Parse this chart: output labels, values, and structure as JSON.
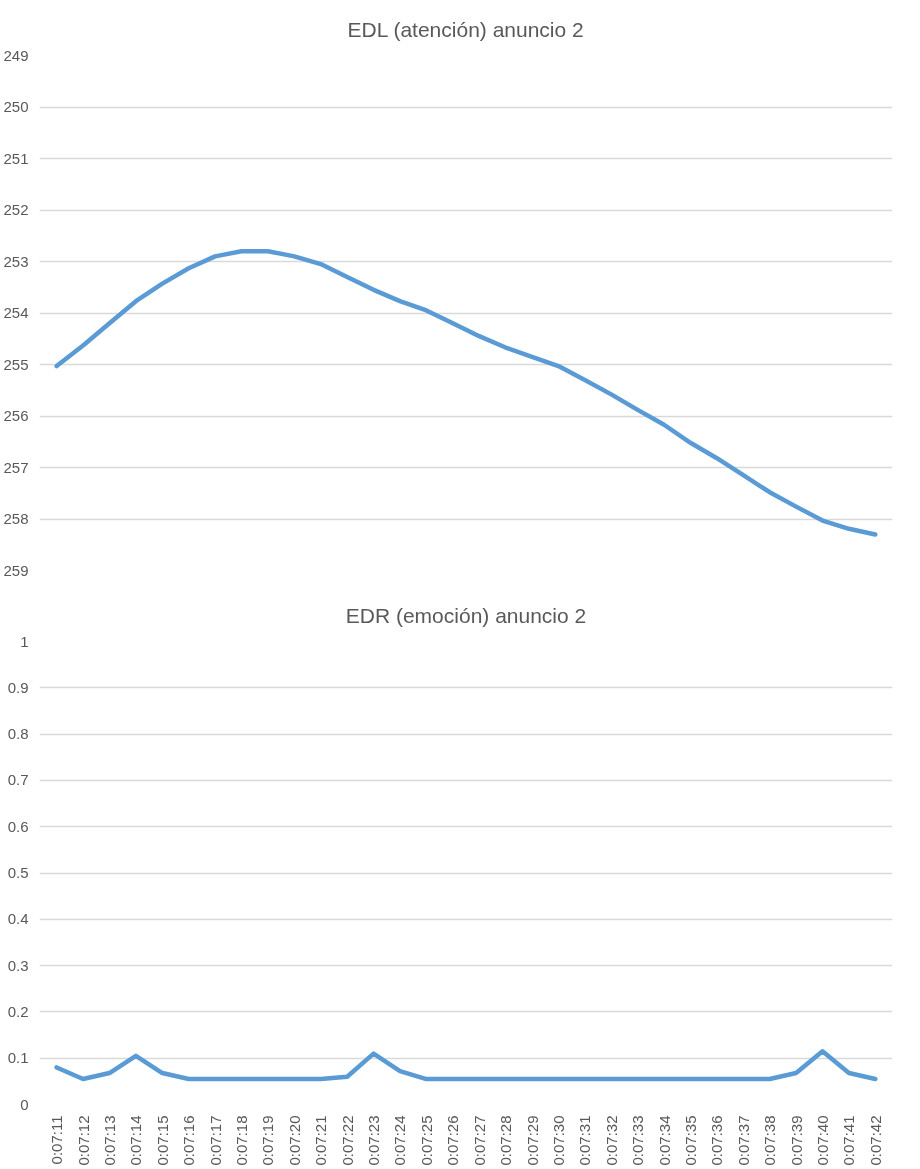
{
  "chart_data": [
    {
      "type": "line",
      "title": "EDL (atención) anuncio 2",
      "categories": [
        null,
        null,
        null,
        null,
        null,
        null,
        null,
        null,
        null,
        null,
        null,
        null,
        null,
        null,
        null,
        null,
        null,
        null,
        null,
        null,
        null,
        null,
        null,
        null,
        null,
        null,
        null,
        null,
        null,
        null,
        null,
        null
      ],
      "series": [
        {
          "color": "#5b9bd5",
          "values": [
            255.03,
            254.63,
            254.2,
            253.77,
            253.43,
            253.13,
            252.9,
            252.8,
            252.8,
            252.9,
            253.05,
            253.3,
            253.55,
            253.77,
            253.95,
            254.2,
            254.45,
            254.67,
            254.85,
            255.03,
            255.3,
            255.58,
            255.88,
            256.17,
            256.52,
            256.82,
            257.15,
            257.48,
            257.76,
            258.03,
            258.19,
            258.3
          ]
        }
      ],
      "ylim": [
        259,
        249
      ],
      "yticks": [
        249,
        250,
        251,
        252,
        253,
        254,
        255,
        256,
        257,
        258,
        259
      ],
      "grid": "y",
      "tick_labels": "y"
    },
    {
      "type": "line",
      "title": "EDR (emoción) anuncio 2",
      "categories": [
        "0:07:11",
        "0:07:12",
        "0:07:13",
        "0:07:14",
        "0:07:15",
        "0:07:16",
        "0:07:17",
        "0:07:18",
        "0:07:19",
        "0:07:20",
        "0:07:21",
        "0:07:22",
        "0:07:23",
        "0:07:24",
        "0:07:25",
        "0:07:26",
        "0:07:27",
        "0:07:28",
        "0:07:29",
        "0:07:30",
        "0:07:31",
        "0:07:32",
        "0:07:33",
        "0:07:34",
        "0:07:35",
        "0:07:36",
        "0:07:37",
        "0:07:38",
        "0:07:39",
        "0:07:40",
        "0:07:41",
        "0:07:42"
      ],
      "series": [
        {
          "color": "#5b9bd5",
          "values": [
            0.08,
            0.055,
            0.068,
            0.105,
            0.068,
            0.055,
            0.055,
            0.055,
            0.055,
            0.055,
            0.055,
            0.06,
            0.11,
            0.072,
            0.055,
            0.055,
            0.055,
            0.055,
            0.055,
            0.055,
            0.055,
            0.055,
            0.055,
            0.055,
            0.055,
            0.055,
            0.055,
            0.055,
            0.068,
            0.115,
            0.068,
            0.055
          ]
        }
      ],
      "ylim": [
        0,
        1
      ],
      "yticks": [
        0,
        0.1,
        0.2,
        0.3,
        0.4,
        0.5,
        0.6,
        0.7,
        0.8,
        0.9,
        1
      ],
      "grid": "y"
    }
  ]
}
